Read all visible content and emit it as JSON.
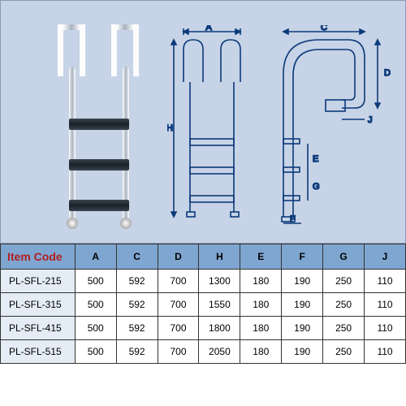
{
  "table": {
    "header_bg": "#7ea6d0",
    "itemcode_color": "#b02020",
    "firstcol_bg": "#e4ecf5",
    "columns": [
      "Item Code",
      "A",
      "C",
      "D",
      "H",
      "E",
      "F",
      "G",
      "J"
    ],
    "col_widths": [
      "92px",
      "51px",
      "51px",
      "51px",
      "51px",
      "51px",
      "51px",
      "51px",
      "51px"
    ],
    "rows": [
      [
        "PL-SFL-215",
        "500",
        "592",
        "700",
        "1300",
        "180",
        "190",
        "250",
        "110"
      ],
      [
        "PL-SFL-315",
        "500",
        "592",
        "700",
        "1550",
        "180",
        "190",
        "250",
        "110"
      ],
      [
        "PL-SFL-415",
        "500",
        "592",
        "700",
        "1800",
        "180",
        "190",
        "250",
        "110"
      ],
      [
        "PL-SFL-515",
        "500",
        "592",
        "700",
        "2050",
        "180",
        "190",
        "250",
        "110"
      ]
    ]
  },
  "diagram": {
    "stroke": "#0b3a7a",
    "bg": "#c7d3e6",
    "labels": {
      "A": "A",
      "C": "C",
      "D": "D",
      "H": "H",
      "E": "E",
      "F": "F",
      "G": "G",
      "J": "J"
    }
  }
}
